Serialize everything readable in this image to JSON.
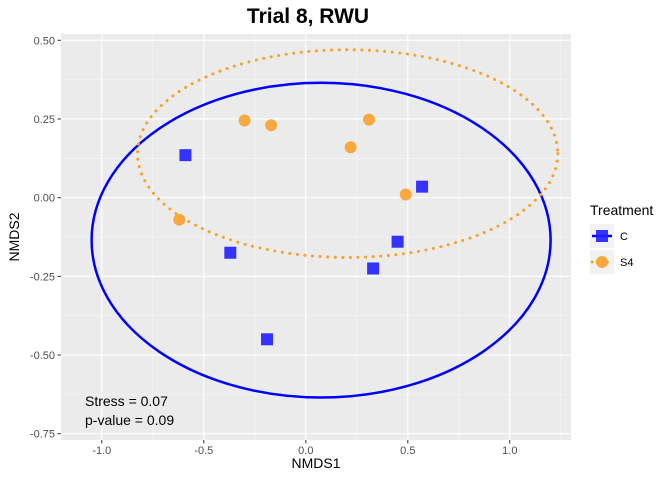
{
  "chart_data": {
    "type": "scatter",
    "title": "Trial 8, RWU",
    "xlabel": "NMDS1",
    "ylabel": "NMDS2",
    "xlim": [
      -1.2,
      1.3
    ],
    "ylim": [
      -0.77,
      0.52
    ],
    "xticks": [
      -1.0,
      -0.5,
      0.0,
      0.5,
      1.0
    ],
    "xtick_labels": [
      "-1.0",
      "-0.5",
      "0.0",
      "0.5",
      "1.0"
    ],
    "yticks": [
      0.5,
      0.25,
      0.0,
      -0.25,
      -0.5,
      -0.75
    ],
    "ytick_labels": [
      "0.50",
      "0.25",
      "0.00",
      "-0.25",
      "-0.50",
      "-0.75"
    ],
    "grid": true,
    "legend": {
      "title": "Treatment",
      "position": "right"
    },
    "series": [
      {
        "name": "C",
        "color": "#1f1fff",
        "marker": "square",
        "points": [
          {
            "x": -0.59,
            "y": 0.135
          },
          {
            "x": -0.37,
            "y": -0.175
          },
          {
            "x": -0.19,
            "y": -0.45
          },
          {
            "x": 0.33,
            "y": -0.225
          },
          {
            "x": 0.45,
            "y": -0.14
          },
          {
            "x": 0.57,
            "y": 0.035
          }
        ],
        "ellipse": {
          "cx": 0.075,
          "cy": -0.135,
          "rx": 1.125,
          "ry": 0.5,
          "color": "#0000ff",
          "style": "solid"
        }
      },
      {
        "name": "S4",
        "color": "#f9a12c",
        "marker": "circle",
        "points": [
          {
            "x": -0.62,
            "y": -0.07
          },
          {
            "x": -0.3,
            "y": 0.245
          },
          {
            "x": -0.17,
            "y": 0.23
          },
          {
            "x": 0.22,
            "y": 0.16
          },
          {
            "x": 0.31,
            "y": 0.248
          },
          {
            "x": 0.49,
            "y": 0.01
          }
        ],
        "ellipse": {
          "cx": 0.205,
          "cy": 0.14,
          "rx": 1.03,
          "ry": 0.33,
          "color": "#f9a12c",
          "style": "dotted"
        }
      }
    ],
    "annotations": {
      "stress_label": "Stress =  0.07",
      "pvalue_label": "p-value =  0.09"
    }
  }
}
